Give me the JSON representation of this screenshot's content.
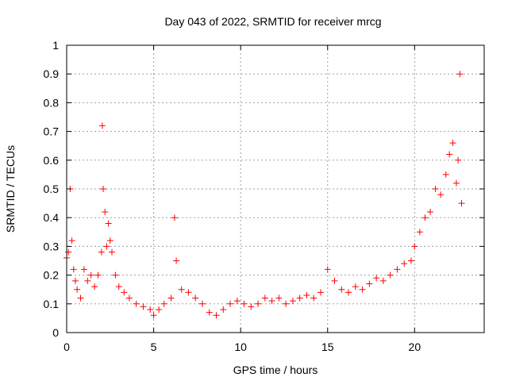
{
  "chart_data": {
    "type": "scatter",
    "title": "Day 043 of 2022, SRMTID for receiver mrcg",
    "xlabel": "GPS time / hours",
    "ylabel": "SRMTID / TECUs",
    "xlim": [
      0,
      24
    ],
    "ylim": [
      0,
      1
    ],
    "xticks": [
      0,
      5,
      10,
      15,
      20
    ],
    "xtick_labels": [
      "0",
      "5",
      "10",
      "15",
      "20"
    ],
    "yticks": [
      0,
      0.1,
      0.2,
      0.3,
      0.4,
      0.5,
      0.6,
      0.7,
      0.8,
      0.9,
      1
    ],
    "ytick_labels": [
      "0",
      "0.1",
      "0.2",
      "0.3",
      "0.4",
      "0.5",
      "0.6",
      "0.7",
      "0.8",
      "0.9",
      "1"
    ],
    "grid": true,
    "marker": "+",
    "color": "#ff0000",
    "series": [
      {
        "name": "SRMTID",
        "x": [
          0.0,
          0.1,
          0.2,
          0.3,
          0.4,
          0.5,
          0.6,
          0.8,
          1.0,
          1.2,
          1.4,
          1.6,
          1.8,
          2.0,
          2.05,
          2.1,
          2.2,
          2.3,
          2.4,
          2.5,
          2.6,
          2.8,
          3.0,
          3.3,
          3.6,
          4.0,
          4.4,
          4.8,
          5.0,
          5.3,
          5.6,
          6.0,
          6.2,
          6.3,
          6.6,
          7.0,
          7.4,
          7.8,
          8.2,
          8.6,
          9.0,
          9.4,
          9.8,
          10.2,
          10.6,
          11.0,
          11.4,
          11.8,
          12.2,
          12.6,
          13.0,
          13.4,
          13.8,
          14.2,
          14.6,
          15.0,
          15.4,
          15.8,
          16.2,
          16.6,
          17.0,
          17.4,
          17.8,
          18.2,
          18.6,
          19.0,
          19.4,
          19.8,
          20.0,
          20.3,
          20.6,
          20.9,
          21.2,
          21.5,
          21.8,
          22.0,
          22.2,
          22.4,
          22.5,
          22.6,
          22.7
        ],
        "y": [
          0.26,
          0.28,
          0.5,
          0.32,
          0.22,
          0.18,
          0.15,
          0.12,
          0.22,
          0.18,
          0.2,
          0.16,
          0.2,
          0.28,
          0.72,
          0.5,
          0.42,
          0.3,
          0.38,
          0.32,
          0.28,
          0.2,
          0.16,
          0.14,
          0.12,
          0.1,
          0.09,
          0.08,
          0.06,
          0.08,
          0.1,
          0.12,
          0.4,
          0.25,
          0.15,
          0.14,
          0.12,
          0.1,
          0.07,
          0.06,
          0.08,
          0.1,
          0.11,
          0.1,
          0.09,
          0.1,
          0.12,
          0.11,
          0.12,
          0.1,
          0.11,
          0.12,
          0.13,
          0.12,
          0.14,
          0.22,
          0.18,
          0.15,
          0.14,
          0.16,
          0.15,
          0.17,
          0.19,
          0.18,
          0.2,
          0.22,
          0.24,
          0.25,
          0.3,
          0.35,
          0.4,
          0.42,
          0.5,
          0.48,
          0.55,
          0.62,
          0.66,
          0.52,
          0.6,
          0.9,
          0.45
        ]
      }
    ]
  }
}
